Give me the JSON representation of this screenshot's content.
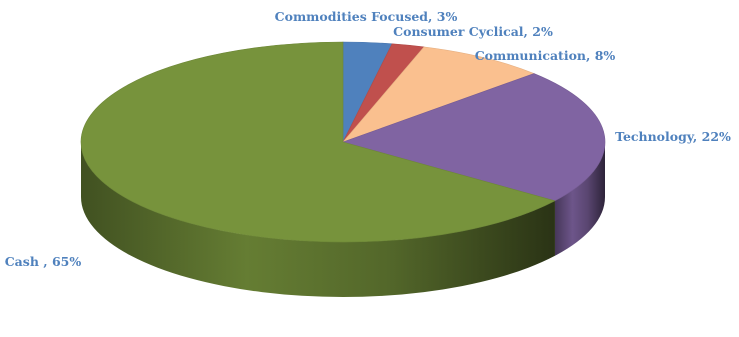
{
  "chart_data": {
    "type": "pie",
    "title": "",
    "style": "3d-pie",
    "label_color": "#4f81bd",
    "slices": [
      {
        "label": "Commodities Focused, 3%",
        "category": "Commodities Focused",
        "value": 3,
        "color": "#4f81bd"
      },
      {
        "label": "Consumer Cyclical, 2%",
        "category": "Consumer Cyclical",
        "value": 2,
        "color": "#c0504d"
      },
      {
        "label": "Communication, 8%",
        "category": "Communication",
        "value": 8,
        "color": "#fac08f"
      },
      {
        "label": "Technology, 22%",
        "category": "Technology",
        "value": 22,
        "color": "#8064a2"
      },
      {
        "label": "Cash , 65%",
        "category": "Cash",
        "value": 65,
        "color": "#77933c"
      }
    ]
  }
}
